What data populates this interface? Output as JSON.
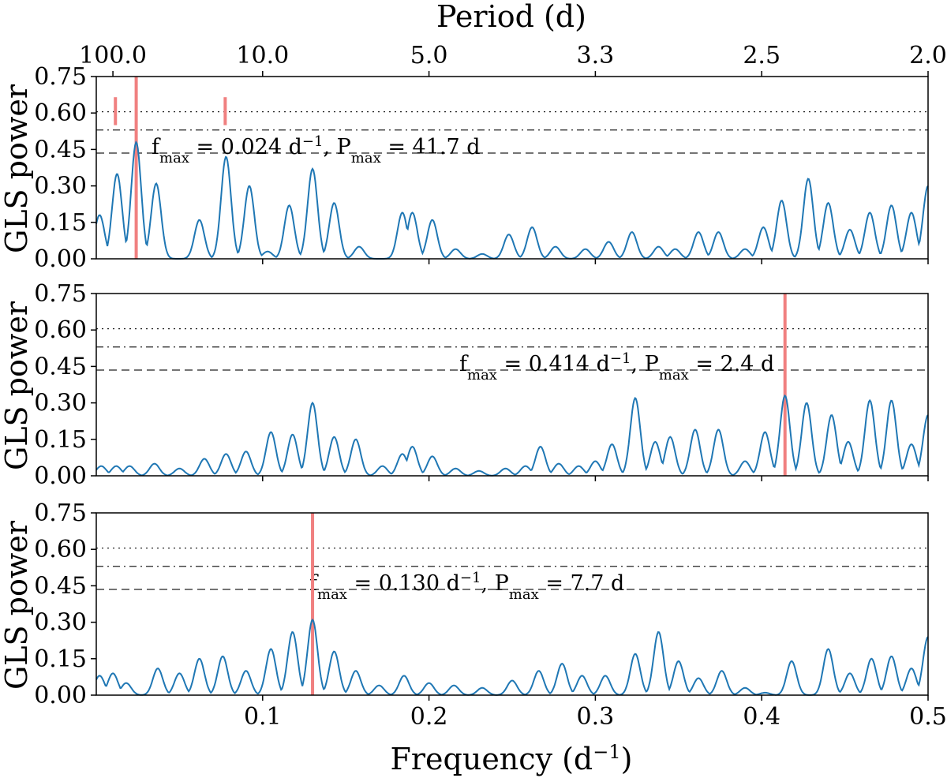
{
  "figure": {
    "top_axis_title": "Period (d)",
    "top_ticks": [
      {
        "label": "100.0",
        "freq": 0.01
      },
      {
        "label": "10.0",
        "freq": 0.1
      },
      {
        "label": "5.0",
        "freq": 0.2
      },
      {
        "label": "3.3",
        "freq": 0.3
      },
      {
        "label": "2.5",
        "freq": 0.4
      },
      {
        "label": "2.0",
        "freq": 0.5
      }
    ],
    "x_axis_title_main": "Frequency (d",
    "x_axis_title_sup": "−1",
    "x_axis_title_close": ")",
    "y_axis_title": "GLS power",
    "x_ticks": [
      "0.1",
      "0.2",
      "0.3",
      "0.4",
      "0.5"
    ],
    "y_ticks": [
      "0.00",
      "0.15",
      "0.30",
      "0.45",
      "0.60",
      "0.75"
    ]
  },
  "colors": {
    "curve": "#1f77b4",
    "marker": "#f08080",
    "threshold": "#555555"
  },
  "chart_data": [
    {
      "type": "line",
      "name": "panel-1",
      "xlabel": "",
      "ylabel": "GLS power",
      "xlim": [
        0.0,
        0.5
      ],
      "ylim": [
        0.0,
        0.75
      ],
      "thresholds": [
        {
          "style": "dotted",
          "value": 0.605
        },
        {
          "style": "dashdot",
          "value": 0.53
        },
        {
          "style": "dashed",
          "value": 0.435
        }
      ],
      "marker_freq": 0.024,
      "extra_markers": [
        0.0115,
        0.0775
      ],
      "annotation": {
        "f": "f",
        "f_sub": "max",
        "f_text": " = 0.024 d",
        "f_sup": "−1",
        "p": "P",
        "p_sub": "max",
        "p_text": " = 41.7 d"
      },
      "peaks": [
        [
          0.002,
          0.18
        ],
        [
          0.0125,
          0.35
        ],
        [
          0.024,
          0.48
        ],
        [
          0.036,
          0.31
        ],
        [
          0.062,
          0.16
        ],
        [
          0.078,
          0.42
        ],
        [
          0.092,
          0.3
        ],
        [
          0.103,
          0.03
        ],
        [
          0.116,
          0.22
        ],
        [
          0.13,
          0.37
        ],
        [
          0.143,
          0.23
        ],
        [
          0.158,
          0.05
        ],
        [
          0.184,
          0.19
        ],
        [
          0.19,
          0.19
        ],
        [
          0.202,
          0.16
        ],
        [
          0.216,
          0.04
        ],
        [
          0.232,
          0.02
        ],
        [
          0.248,
          0.1
        ],
        [
          0.262,
          0.13
        ],
        [
          0.276,
          0.05
        ],
        [
          0.294,
          0.04
        ],
        [
          0.308,
          0.07
        ],
        [
          0.322,
          0.11
        ],
        [
          0.338,
          0.05
        ],
        [
          0.348,
          0.04
        ],
        [
          0.362,
          0.11
        ],
        [
          0.374,
          0.11
        ],
        [
          0.39,
          0.04
        ],
        [
          0.401,
          0.13
        ],
        [
          0.412,
          0.24
        ],
        [
          0.428,
          0.33
        ],
        [
          0.44,
          0.23
        ],
        [
          0.453,
          0.12
        ],
        [
          0.465,
          0.19
        ],
        [
          0.478,
          0.22
        ],
        [
          0.49,
          0.19
        ],
        [
          0.5,
          0.3
        ]
      ]
    },
    {
      "type": "line",
      "name": "panel-2",
      "xlabel": "",
      "ylabel": "GLS power",
      "xlim": [
        0.0,
        0.5
      ],
      "ylim": [
        0.0,
        0.75
      ],
      "thresholds": [
        {
          "style": "dotted",
          "value": 0.605
        },
        {
          "style": "dashdot",
          "value": 0.53
        },
        {
          "style": "dashed",
          "value": 0.435
        }
      ],
      "marker_freq": 0.414,
      "extra_markers": [],
      "annotation": {
        "f": "f",
        "f_sub": "max",
        "f_text": " = 0.414 d",
        "f_sup": "−1",
        "p": "P",
        "p_sub": "max",
        "p_text": " = 2.4 d"
      },
      "peaks": [
        [
          0.003,
          0.04
        ],
        [
          0.012,
          0.04
        ],
        [
          0.02,
          0.04
        ],
        [
          0.035,
          0.05
        ],
        [
          0.05,
          0.03
        ],
        [
          0.065,
          0.07
        ],
        [
          0.078,
          0.09
        ],
        [
          0.09,
          0.1
        ],
        [
          0.105,
          0.18
        ],
        [
          0.118,
          0.17
        ],
        [
          0.13,
          0.3
        ],
        [
          0.143,
          0.16
        ],
        [
          0.156,
          0.15
        ],
        [
          0.172,
          0.04
        ],
        [
          0.184,
          0.09
        ],
        [
          0.19,
          0.12
        ],
        [
          0.202,
          0.08
        ],
        [
          0.216,
          0.03
        ],
        [
          0.23,
          0.02
        ],
        [
          0.246,
          0.03
        ],
        [
          0.258,
          0.04
        ],
        [
          0.267,
          0.12
        ],
        [
          0.278,
          0.05
        ],
        [
          0.29,
          0.04
        ],
        [
          0.3,
          0.06
        ],
        [
          0.31,
          0.13
        ],
        [
          0.324,
          0.32
        ],
        [
          0.336,
          0.14
        ],
        [
          0.345,
          0.16
        ],
        [
          0.36,
          0.19
        ],
        [
          0.374,
          0.19
        ],
        [
          0.39,
          0.06
        ],
        [
          0.402,
          0.18
        ],
        [
          0.414,
          0.33
        ],
        [
          0.427,
          0.3
        ],
        [
          0.442,
          0.25
        ],
        [
          0.452,
          0.14
        ],
        [
          0.465,
          0.31
        ],
        [
          0.478,
          0.31
        ],
        [
          0.49,
          0.13
        ],
        [
          0.5,
          0.25
        ]
      ]
    },
    {
      "type": "line",
      "name": "panel-3",
      "xlabel": "Frequency (d−1)",
      "ylabel": "GLS power",
      "xlim": [
        0.0,
        0.5
      ],
      "ylim": [
        0.0,
        0.75
      ],
      "thresholds": [
        {
          "style": "dotted",
          "value": 0.605
        },
        {
          "style": "dashdot",
          "value": 0.53
        },
        {
          "style": "dashed",
          "value": 0.435
        }
      ],
      "marker_freq": 0.13,
      "extra_markers": [],
      "annotation": {
        "f": "f",
        "f_sub": "max",
        "f_text": " = 0.130 d",
        "f_sup": "−1",
        "p": "P",
        "p_sub": "max",
        "p_text": " = 7.7 d"
      },
      "peaks": [
        [
          0.002,
          0.08
        ],
        [
          0.01,
          0.09
        ],
        [
          0.018,
          0.05
        ],
        [
          0.037,
          0.11
        ],
        [
          0.05,
          0.09
        ],
        [
          0.062,
          0.15
        ],
        [
          0.076,
          0.16
        ],
        [
          0.09,
          0.1
        ],
        [
          0.105,
          0.19
        ],
        [
          0.118,
          0.26
        ],
        [
          0.13,
          0.31
        ],
        [
          0.143,
          0.18
        ],
        [
          0.156,
          0.1
        ],
        [
          0.17,
          0.04
        ],
        [
          0.185,
          0.08
        ],
        [
          0.2,
          0.05
        ],
        [
          0.215,
          0.04
        ],
        [
          0.232,
          0.03
        ],
        [
          0.25,
          0.06
        ],
        [
          0.266,
          0.1
        ],
        [
          0.28,
          0.13
        ],
        [
          0.292,
          0.08
        ],
        [
          0.306,
          0.08
        ],
        [
          0.324,
          0.17
        ],
        [
          0.338,
          0.26
        ],
        [
          0.35,
          0.14
        ],
        [
          0.362,
          0.07
        ],
        [
          0.376,
          0.1
        ],
        [
          0.39,
          0.03
        ],
        [
          0.402,
          0.01
        ],
        [
          0.418,
          0.14
        ],
        [
          0.44,
          0.19
        ],
        [
          0.453,
          0.09
        ],
        [
          0.466,
          0.15
        ],
        [
          0.478,
          0.16
        ],
        [
          0.49,
          0.11
        ],
        [
          0.5,
          0.24
        ]
      ]
    }
  ]
}
